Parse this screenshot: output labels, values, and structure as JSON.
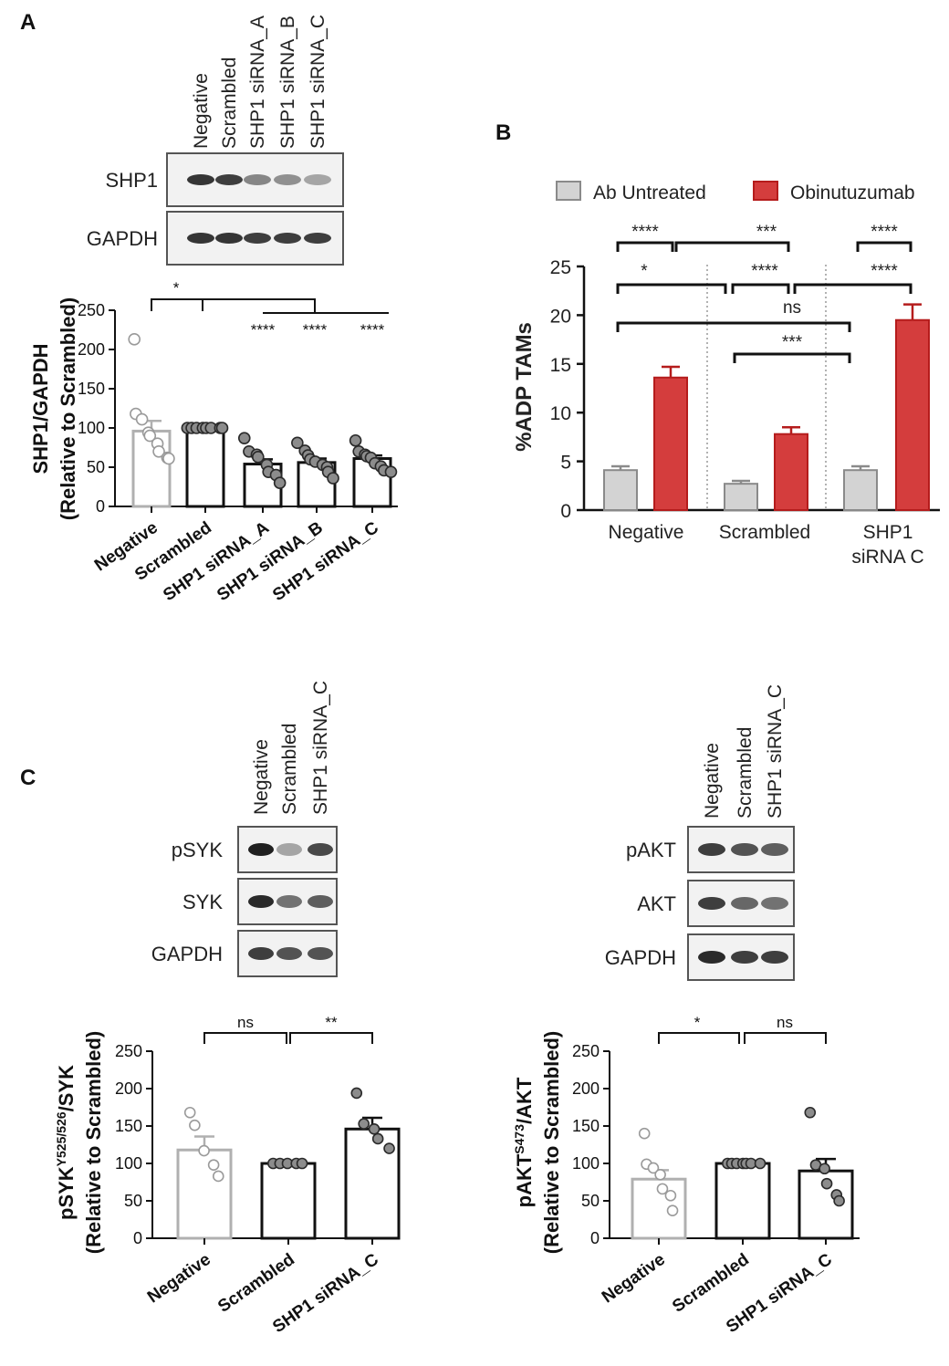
{
  "panels": {
    "A": {
      "letter": "A",
      "lanes": [
        "Negative",
        "Scrambled",
        "SHP1 siRNA_A",
        "SHP1 siRNA_B",
        "SHP1 siRNA_C"
      ],
      "blots": [
        {
          "label": "SHP1",
          "intensity": [
            0.9,
            0.85,
            0.5,
            0.45,
            0.35
          ]
        },
        {
          "label": "GAPDH",
          "intensity": [
            0.9,
            0.9,
            0.85,
            0.85,
            0.85
          ]
        }
      ]
    },
    "B": {
      "letter": "B"
    },
    "C": {
      "letter": "C",
      "left": {
        "lanes": [
          "Negative",
          "Scrambled",
          "SHP1 siRNA_C"
        ],
        "blots": [
          {
            "label": "pSYK",
            "intensity": [
              1.0,
              0.35,
              0.8
            ]
          },
          {
            "label": "SYK",
            "intensity": [
              0.95,
              0.6,
              0.7
            ]
          },
          {
            "label": "GAPDH",
            "intensity": [
              0.85,
              0.75,
              0.75
            ]
          }
        ]
      },
      "right": {
        "lanes": [
          "Negative",
          "Scrambled",
          "SHP1 siRNA_C"
        ],
        "blots": [
          {
            "label": "pAKT",
            "intensity": [
              0.85,
              0.75,
              0.7
            ]
          },
          {
            "label": "AKT",
            "intensity": [
              0.85,
              0.65,
              0.6
            ]
          },
          {
            "label": "GAPDH",
            "intensity": [
              0.95,
              0.85,
              0.85
            ]
          }
        ]
      }
    }
  },
  "chart_data": [
    {
      "id": "A",
      "type": "bar",
      "title": "",
      "ylabel_line1": "SHP1/GAPDH",
      "ylabel_line2": "(Relative to Scrambled)",
      "categories": [
        "Negative",
        "Scrambled",
        "SHP1 siRNA_A",
        "SHP1 siRNA_B",
        "SHP1 siRNA_C"
      ],
      "values": [
        96,
        100,
        54,
        56,
        61
      ],
      "sem": [
        13,
        0,
        6,
        5,
        4
      ],
      "points": [
        [
          213,
          118,
          111,
          94,
          90,
          80,
          70,
          62,
          61
        ],
        [
          100,
          100,
          100,
          100,
          100,
          100,
          100,
          100
        ],
        [
          87,
          70,
          66,
          63,
          53,
          44,
          40,
          30
        ],
        [
          81,
          71,
          65,
          60,
          57,
          53,
          50,
          44,
          36
        ],
        [
          84,
          70,
          66,
          64,
          62,
          55,
          51,
          46,
          44
        ]
      ],
      "colors": [
        "#b0b0b0",
        "#111111",
        "#111111",
        "#111111",
        "#111111"
      ],
      "ylim": [
        0,
        250
      ],
      "yticks": [
        0,
        50,
        100,
        150,
        200,
        250
      ],
      "significance": [
        {
          "label": "*",
          "from": 0,
          "to": 1
        },
        {
          "label": "****",
          "at": 2
        },
        {
          "label": "****",
          "at": 3
        },
        {
          "label": "****",
          "at": 4
        }
      ]
    },
    {
      "id": "B",
      "type": "bar",
      "title": "",
      "ylabel": "%ADP TAMs",
      "categories": [
        "Negative",
        "Scrambled",
        "SHP1 siRNA C"
      ],
      "series": [
        {
          "name": "Ab Untreated",
          "color": "#d3d3d3",
          "edge": "#8a8a8a",
          "values": [
            4.1,
            2.7,
            4.1
          ],
          "sem": [
            0.4,
            0.3,
            0.4
          ]
        },
        {
          "name": "Obinutuzumab",
          "color": "#d43d3d",
          "edge": "#b51c1c",
          "values": [
            13.6,
            7.8,
            19.5
          ],
          "sem": [
            1.1,
            0.7,
            1.6
          ]
        }
      ],
      "ylim": [
        0,
        25
      ],
      "yticks": [
        0,
        5,
        10,
        15,
        20,
        25
      ],
      "significance": [
        {
          "label": "****"
        },
        {
          "label": "***"
        },
        {
          "label": "****"
        },
        {
          "label": "*"
        },
        {
          "label": "****"
        },
        {
          "label": "****"
        },
        {
          "label": "ns"
        },
        {
          "label": "***"
        }
      ]
    },
    {
      "id": "C-left",
      "type": "bar",
      "title": "",
      "ylabel_main": "pSYK",
      "ylabel_sup": "Y525/526",
      "ylabel_tail": "/SYK",
      "ylabel_line2": "(Relative to Scrambled)",
      "categories": [
        "Negative",
        "Scrambled",
        "SHP1 siRNA_C"
      ],
      "values": [
        118,
        100,
        146
      ],
      "sem": [
        18,
        0,
        15
      ],
      "points": [
        [
          168,
          151,
          117,
          98,
          83
        ],
        [
          100,
          100,
          100,
          100,
          100
        ],
        [
          194,
          153,
          146,
          133,
          120
        ]
      ],
      "colors": [
        "#b0b0b0",
        "#111111",
        "#111111"
      ],
      "ylim": [
        0,
        250
      ],
      "yticks": [
        0,
        50,
        100,
        150,
        200,
        250
      ],
      "significance": [
        {
          "label": "ns"
        },
        {
          "label": "**"
        }
      ]
    },
    {
      "id": "C-right",
      "type": "bar",
      "title": "",
      "ylabel_main": "pAKT",
      "ylabel_sup": "S473",
      "ylabel_tail": "/AKT",
      "ylabel_line2": "(Relative to Scrambled)",
      "categories": [
        "Negative",
        "Scrambled",
        "SHP1 siRNA_C"
      ],
      "values": [
        79,
        100,
        90
      ],
      "sem": [
        12,
        0,
        16
      ],
      "points": [
        [
          140,
          99,
          94,
          85,
          66,
          57,
          37
        ],
        [
          100,
          100,
          100,
          100,
          100,
          100,
          100
        ],
        [
          168,
          98,
          93,
          73,
          58,
          50
        ]
      ],
      "colors": [
        "#b0b0b0",
        "#111111",
        "#111111"
      ],
      "ylim": [
        0,
        250
      ],
      "yticks": [
        0,
        50,
        100,
        150,
        200,
        250
      ],
      "significance": [
        {
          "label": "*"
        },
        {
          "label": "ns"
        }
      ]
    }
  ]
}
